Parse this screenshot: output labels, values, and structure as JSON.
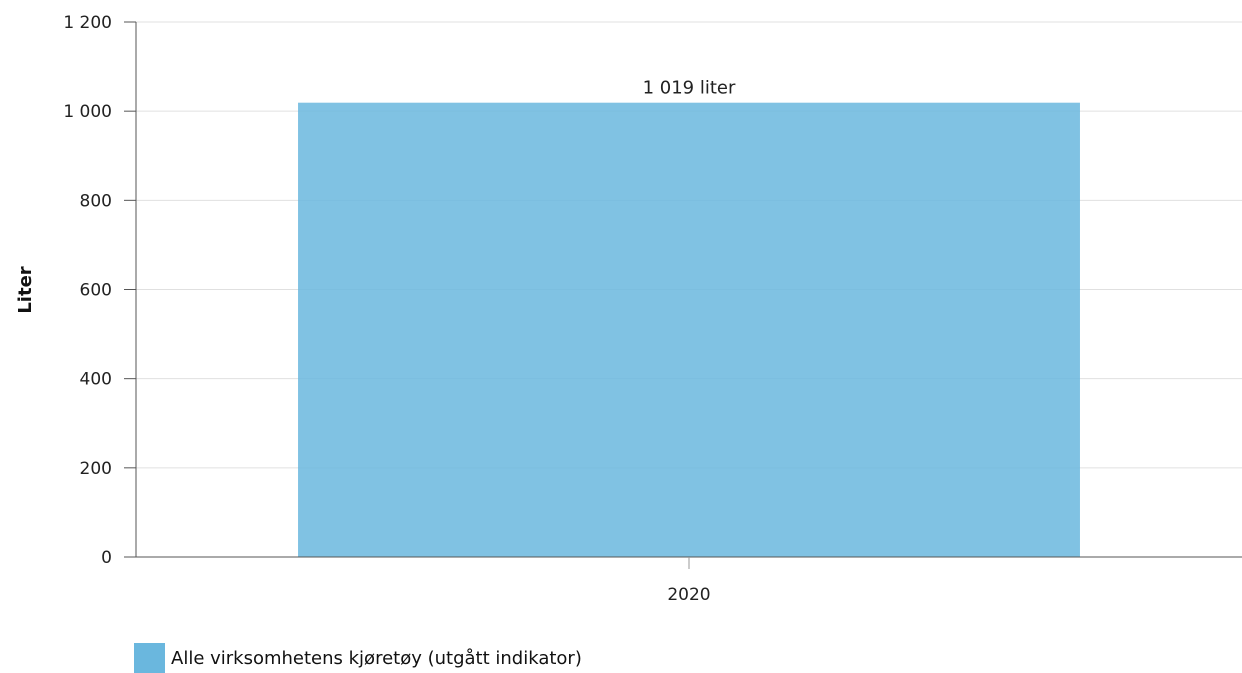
{
  "chart_data": {
    "type": "bar",
    "categories": [
      "2020"
    ],
    "series": [
      {
        "name": "Alle virksomhetens kjøretøy (utgått indikator)",
        "values": [
          1019
        ],
        "color": "#6ab7de"
      }
    ],
    "data_labels": [
      "1 019 liter"
    ],
    "ylabel": "Liter",
    "xlabel": "",
    "ylim": [
      0,
      1200
    ],
    "yticks": [
      0,
      200,
      400,
      600,
      800,
      1000,
      1200
    ],
    "ytick_labels": [
      "0",
      "200",
      "400",
      "600",
      "800",
      "1 000",
      "1 200"
    ],
    "grid": true,
    "legend_position": "bottom-left"
  }
}
